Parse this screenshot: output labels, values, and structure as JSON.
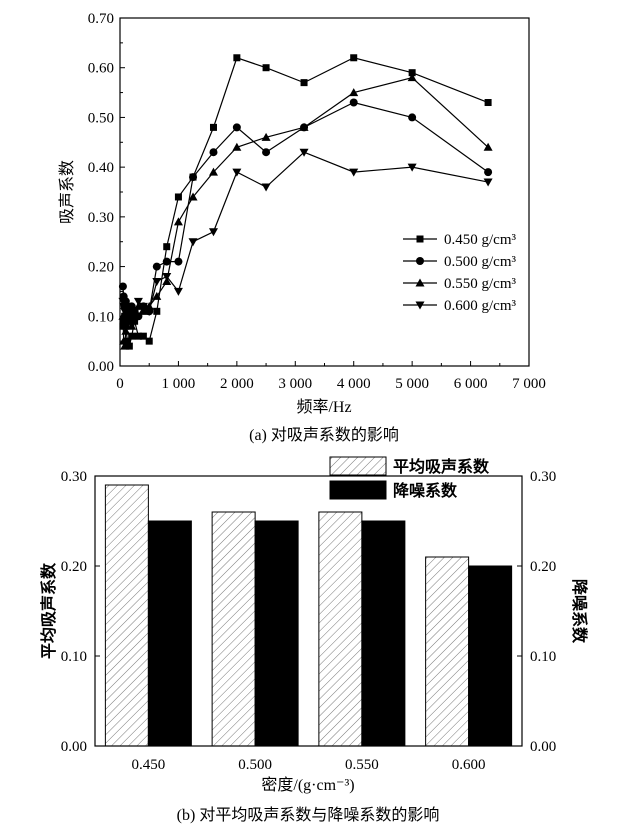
{
  "chart_data": [
    {
      "type": "line",
      "title": "(a) 对吸声系数的影响",
      "xlabel": "频率/Hz",
      "ylabel": "吸声系数",
      "xlim": [
        0,
        7000
      ],
      "ylim": [
        0,
        0.7
      ],
      "xticks": [
        "0",
        "1 000",
        "2 000",
        "3 000",
        "4 000",
        "5 000",
        "6 000",
        "7 000"
      ],
      "yticks": [
        "0.00",
        "0.10",
        "0.20",
        "0.30",
        "0.40",
        "0.50",
        "0.60",
        "0.70"
      ],
      "legend_position": "center-right",
      "x": [
        50,
        63,
        80,
        100,
        125,
        160,
        200,
        250,
        315,
        400,
        500,
        630,
        800,
        1000,
        1250,
        1600,
        2000,
        2500,
        3150,
        4000,
        5000,
        6300
      ],
      "series": [
        {
          "name": "0.450 g/cm³",
          "marker": "square",
          "values": [
            0.08,
            0.09,
            0.1,
            0.08,
            0.05,
            0.04,
            0.06,
            0.09,
            0.06,
            0.06,
            0.05,
            0.11,
            0.24,
            0.34,
            0.38,
            0.48,
            0.62,
            0.6,
            0.57,
            0.62,
            0.59,
            0.53
          ]
        },
        {
          "name": "0.500 g/cm³",
          "marker": "circle",
          "values": [
            0.16,
            0.14,
            0.12,
            0.13,
            0.11,
            0.1,
            0.12,
            0.11,
            0.1,
            0.12,
            0.11,
            0.2,
            0.21,
            0.21,
            0.38,
            0.43,
            0.48,
            0.43,
            0.48,
            0.53,
            0.5,
            0.39
          ]
        },
        {
          "name": "0.550 g/cm³",
          "marker": "triangle-up",
          "values": [
            0.1,
            0.05,
            0.04,
            0.07,
            0.09,
            0.11,
            0.08,
            0.1,
            0.12,
            0.11,
            0.12,
            0.14,
            0.17,
            0.29,
            0.34,
            0.39,
            0.44,
            0.46,
            0.48,
            0.55,
            0.58,
            0.44
          ]
        },
        {
          "name": "0.600 g/cm³",
          "marker": "triangle-down",
          "values": [
            0.13,
            0.12,
            0.11,
            0.12,
            0.1,
            0.09,
            0.11,
            0.1,
            0.13,
            0.12,
            0.11,
            0.17,
            0.18,
            0.15,
            0.25,
            0.27,
            0.39,
            0.36,
            0.43,
            0.39,
            0.4,
            0.37
          ]
        }
      ]
    },
    {
      "type": "bar",
      "title": "(b) 对平均吸声系数与降噪系数的影响",
      "xlabel": "密度/(g·cm⁻³)",
      "ylabel": "平均吸声系数",
      "y2label": "降噪系数",
      "ylim": [
        0,
        0.3
      ],
      "yticks": [
        "0.00",
        "0.10",
        "0.20",
        "0.30"
      ],
      "categories": [
        "0.450",
        "0.500",
        "0.550",
        "0.600"
      ],
      "legend_position": "top-right",
      "series": [
        {
          "name": "平均吸声系数",
          "pattern": "hatched",
          "values": [
            0.29,
            0.26,
            0.26,
            0.21
          ]
        },
        {
          "name": "降噪系数",
          "pattern": "solid-black",
          "values": [
            0.25,
            0.25,
            0.25,
            0.2
          ]
        }
      ]
    }
  ]
}
